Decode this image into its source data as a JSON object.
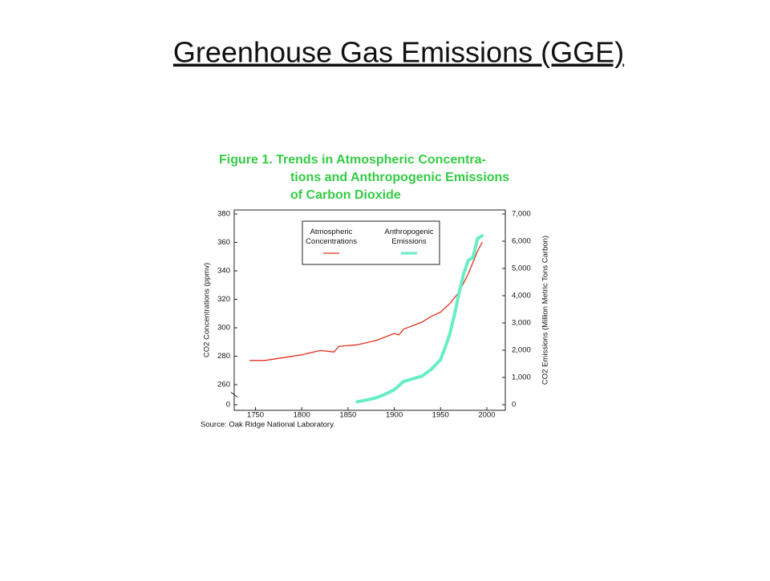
{
  "slide_title": "Greenhouse Gas Emissions (GGE)",
  "chart_data": {
    "type": "line",
    "title": [
      "Figure 1. Trends in Atmospheric Concentra-",
      "tions and Anthropogenic Emissions",
      "of Carbon Dioxide"
    ],
    "ylabel": "CO2 Concentrations (ppmv)",
    "y2label": "CO2 Emissions (Million Metric Tons Carbon)",
    "source": "Source: Oak Ridge National Laboratory.",
    "xlim": [
      1727,
      2020
    ],
    "xticks": [
      1750,
      1800,
      1850,
      1900,
      1950,
      2000
    ],
    "ylim": [
      0,
      380
    ],
    "y_axis_break": true,
    "yticks": [
      0,
      260,
      280,
      300,
      320,
      340,
      360,
      380
    ],
    "y2lim": [
      0,
      7000
    ],
    "y2ticks": [
      0,
      {
        "value": 1000,
        "label": "1,000"
      },
      {
        "value": 2000,
        "label": "2,000"
      },
      {
        "value": 3000,
        "label": "3,000"
      },
      {
        "value": 4000,
        "label": "4,000"
      },
      {
        "value": 5000,
        "label": "5,000"
      },
      {
        "value": 6000,
        "label": "6,000"
      },
      {
        "value": 7000,
        "label": "7,000"
      }
    ],
    "series": [
      {
        "name": "Atmospheric Concentrations",
        "color": "#e0301e",
        "width": 1.3,
        "x": [
          1744,
          1760,
          1780,
          1800,
          1820,
          1835,
          1840,
          1860,
          1880,
          1900,
          1905,
          1910,
          1930,
          1940,
          1950,
          1960,
          1970,
          1980,
          1990,
          1995
        ],
        "values": [
          277,
          277,
          279,
          281,
          284,
          283,
          287,
          288,
          291,
          296,
          295,
          299,
          304,
          308,
          311,
          317,
          325,
          338,
          354,
          360
        ]
      },
      {
        "name": "Anthropogenic Emissions",
        "color": "#66eec4",
        "width": 4,
        "axis": "y2",
        "x": [
          1860,
          1870,
          1880,
          1890,
          1900,
          1910,
          1920,
          1930,
          1940,
          1950,
          1955,
          1960,
          1965,
          1970,
          1975,
          1980,
          1985,
          1990,
          1995
        ],
        "values": [
          110,
          170,
          250,
          380,
          550,
          850,
          950,
          1050,
          1300,
          1650,
          2100,
          2600,
          3300,
          4100,
          4800,
          5300,
          5400,
          6100,
          6200
        ]
      }
    ]
  }
}
